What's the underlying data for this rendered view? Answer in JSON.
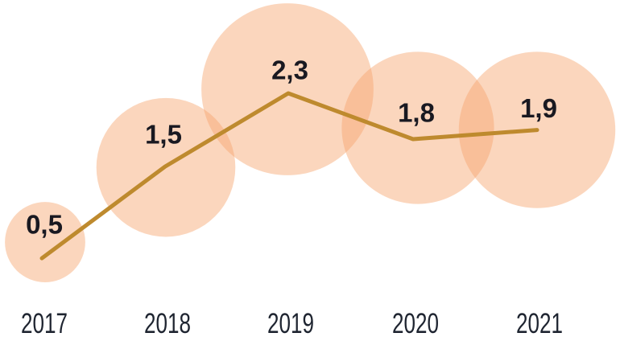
{
  "chart_data": {
    "type": "line",
    "variant": "line-with-proportional-bubbles",
    "categories": [
      "2017",
      "2018",
      "2019",
      "2020",
      "2021"
    ],
    "values": [
      0.5,
      1.5,
      2.3,
      1.8,
      1.9
    ],
    "value_labels": [
      "0,5",
      "1,5",
      "2,3",
      "1,8",
      "1,9"
    ],
    "ylim": [
      0,
      2.6
    ],
    "grid": false,
    "legend": false,
    "bubble_area_note": "bubble radius proportional to square root of value",
    "colors": {
      "bubble_fill": "#F6A36D",
      "bubble_opacity": 0.45,
      "line": "#BE8A2E",
      "value_label_text": "#191921",
      "axis_label_text": "#1E2430",
      "background": "#FFFFFF"
    }
  }
}
